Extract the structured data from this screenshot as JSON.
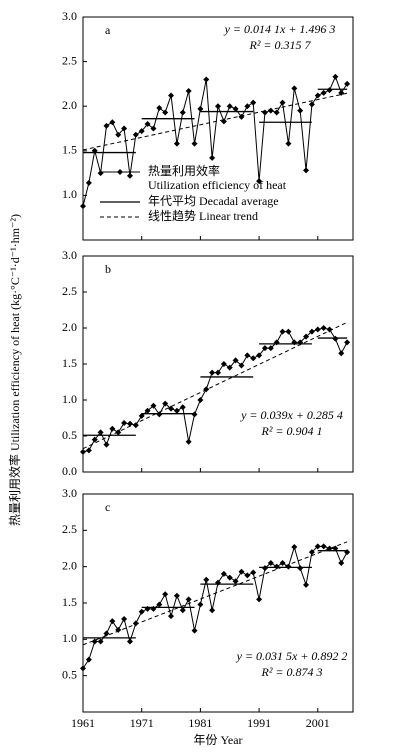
{
  "y_label": "热量利用效率 Utilization efficiency of heat (kg·°C⁻¹·d⁻¹·hm⁻²)",
  "x_label": "年份 Year",
  "legend": [
    "热量利用效率",
    "Utilization efficiency of heat",
    "年代平均 Decadal average",
    "线性趋势 Linear trend"
  ],
  "chart_data": [
    {
      "type": "line",
      "label": "a",
      "equation": "y = 0.014 1x + 1.496 3",
      "r2": "R² = 0.315 7",
      "xlim": [
        1961,
        2007
      ],
      "ylim": [
        0.5,
        3.0
      ],
      "yticks": [
        1.0,
        1.5,
        2.0,
        2.5,
        3.0
      ],
      "x": [
        1961,
        1962,
        1963,
        1964,
        1965,
        1966,
        1967,
        1968,
        1969,
        1970,
        1971,
        1972,
        1973,
        1974,
        1975,
        1976,
        1977,
        1978,
        1979,
        1980,
        1981,
        1982,
        1983,
        1984,
        1985,
        1986,
        1987,
        1988,
        1989,
        1990,
        1991,
        1992,
        1993,
        1994,
        1995,
        1996,
        1997,
        1998,
        1999,
        2000,
        2001,
        2002,
        2003,
        2004,
        2005,
        2006
      ],
      "values": [
        0.88,
        1.14,
        1.5,
        1.25,
        1.78,
        1.82,
        1.68,
        1.75,
        1.22,
        1.68,
        1.72,
        1.8,
        1.75,
        1.98,
        1.93,
        2.12,
        1.58,
        1.93,
        2.17,
        1.58,
        1.97,
        2.3,
        1.42,
        2.0,
        1.83,
        2.0,
        1.97,
        1.88,
        2.0,
        2.04,
        1.16,
        1.93,
        1.95,
        1.93,
        2.04,
        1.58,
        2.2,
        1.95,
        1.28,
        2.02,
        2.12,
        2.15,
        2.18,
        2.33,
        2.15,
        2.25
      ],
      "decadal_average": [
        {
          "x": [
            1961,
            1970
          ],
          "value": 1.48
        },
        {
          "x": [
            1971,
            1980
          ],
          "value": 1.86
        },
        {
          "x": [
            1981,
            1990
          ],
          "value": 1.94
        },
        {
          "x": [
            1991,
            2000
          ],
          "value": 1.82
        },
        {
          "x": [
            2001,
            2006
          ],
          "value": 2.19
        }
      ],
      "trend": {
        "x": [
          1961,
          2006
        ],
        "values": [
          1.51,
          2.145
        ]
      }
    },
    {
      "type": "line",
      "label": "b",
      "equation": "y = 0.039x + 0.285 4",
      "r2": "R² = 0.904 1",
      "xlim": [
        1961,
        2007
      ],
      "ylim": [
        0.0,
        3.0
      ],
      "yticks": [
        0.0,
        0.5,
        1.0,
        1.5,
        2.0,
        2.5,
        3.0
      ],
      "x": [
        1961,
        1962,
        1963,
        1964,
        1965,
        1966,
        1967,
        1968,
        1969,
        1970,
        1971,
        1972,
        1973,
        1974,
        1975,
        1976,
        1977,
        1978,
        1979,
        1980,
        1981,
        1982,
        1983,
        1984,
        1985,
        1986,
        1987,
        1988,
        1989,
        1990,
        1991,
        1992,
        1993,
        1994,
        1995,
        1996,
        1997,
        1998,
        1999,
        2000,
        2001,
        2002,
        2003,
        2004,
        2005,
        2006
      ],
      "values": [
        0.28,
        0.3,
        0.45,
        0.55,
        0.38,
        0.6,
        0.55,
        0.68,
        0.67,
        0.65,
        0.78,
        0.85,
        0.92,
        0.8,
        0.95,
        0.88,
        0.85,
        0.9,
        0.42,
        0.8,
        1.0,
        1.15,
        1.38,
        1.38,
        1.5,
        1.45,
        1.55,
        1.48,
        1.62,
        1.58,
        1.62,
        1.72,
        1.72,
        1.8,
        1.95,
        1.95,
        1.8,
        1.8,
        1.88,
        1.95,
        1.98,
        2.0,
        1.98,
        1.85,
        1.65,
        1.8
      ],
      "decadal_average": [
        {
          "x": [
            1961,
            1970
          ],
          "value": 0.51
        },
        {
          "x": [
            1971,
            1980
          ],
          "value": 0.81
        },
        {
          "x": [
            1981,
            1990
          ],
          "value": 1.32
        },
        {
          "x": [
            1991,
            2000
          ],
          "value": 1.78
        },
        {
          "x": [
            2001,
            2006
          ],
          "value": 1.86
        }
      ],
      "trend": {
        "x": [
          1961,
          2006
        ],
        "values": [
          0.324,
          2.079
        ]
      }
    },
    {
      "type": "line",
      "label": "c",
      "equation": "y = 0.031 5x + 0.892 2",
      "r2": "R² = 0.874 3",
      "xlim": [
        1961,
        2007
      ],
      "ylim": [
        0.0,
        3.0
      ],
      "yticks": [
        0.5,
        1.0,
        1.5,
        2.0,
        2.5,
        3.0
      ],
      "xticks": [
        1961,
        1971,
        1981,
        1991,
        2001
      ],
      "x": [
        1961,
        1962,
        1963,
        1964,
        1965,
        1966,
        1967,
        1968,
        1969,
        1970,
        1971,
        1972,
        1973,
        1974,
        1975,
        1976,
        1977,
        1978,
        1979,
        1980,
        1981,
        1982,
        1983,
        1984,
        1985,
        1986,
        1987,
        1988,
        1989,
        1990,
        1991,
        1992,
        1993,
        1994,
        1995,
        1996,
        1997,
        1998,
        1999,
        2000,
        2001,
        2002,
        2003,
        2004,
        2005,
        2006
      ],
      "values": [
        0.6,
        0.72,
        0.97,
        0.97,
        1.08,
        1.25,
        1.13,
        1.28,
        0.97,
        1.22,
        1.38,
        1.42,
        1.42,
        1.48,
        1.62,
        1.32,
        1.6,
        1.4,
        1.55,
        1.12,
        1.48,
        1.82,
        1.4,
        1.78,
        1.9,
        1.85,
        1.8,
        1.93,
        1.88,
        1.92,
        1.55,
        1.98,
        2.05,
        2.0,
        2.05,
        2.0,
        2.27,
        1.98,
        1.75,
        2.2,
        2.28,
        2.28,
        2.25,
        2.25,
        2.05,
        2.2
      ],
      "decadal_average": [
        {
          "x": [
            1961,
            1970
          ],
          "value": 1.02
        },
        {
          "x": [
            1971,
            1980
          ],
          "value": 1.44
        },
        {
          "x": [
            1981,
            1990
          ],
          "value": 1.76
        },
        {
          "x": [
            1991,
            2000
          ],
          "value": 1.99
        },
        {
          "x": [
            2001,
            2006
          ],
          "value": 2.22
        }
      ],
      "trend": {
        "x": [
          1961,
          2006
        ],
        "values": [
          0.924,
          2.342
        ]
      }
    }
  ]
}
